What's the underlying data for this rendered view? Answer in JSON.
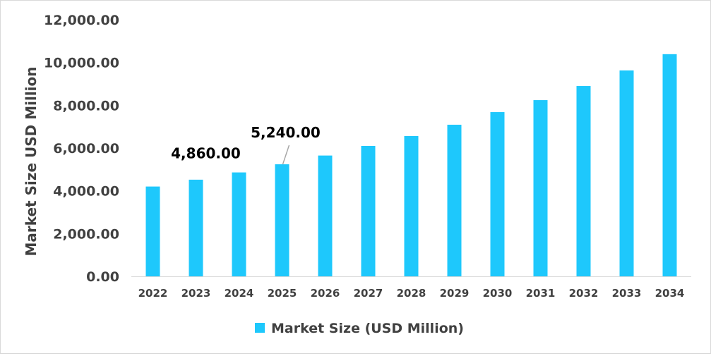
{
  "chart_data": {
    "type": "bar",
    "categories": [
      "2022",
      "2023",
      "2024",
      "2025",
      "2026",
      "2027",
      "2028",
      "2029",
      "2030",
      "2031",
      "2032",
      "2033",
      "2034"
    ],
    "series": [
      {
        "name": "Market Size (USD Million)",
        "values": [
          4200,
          4520,
          4860,
          5240,
          5650,
          6100,
          6560,
          7090,
          7680,
          8240,
          8900,
          9630,
          10390
        ],
        "color": "#1ec8fc"
      }
    ],
    "data_labels": [
      {
        "category": "2024",
        "text": "4,860.00"
      },
      {
        "category": "2025",
        "text": "5,240.00"
      }
    ],
    "title": "",
    "xlabel": "",
    "ylabel": "Market Size USD Million",
    "ylim": [
      0,
      12000
    ],
    "yticks": [
      "0.00",
      "2,000.00",
      "4,000.00",
      "6,000.00",
      "8,000.00",
      "10,000.00",
      "12,000.00"
    ],
    "grid": false,
    "legend": "bottom"
  }
}
